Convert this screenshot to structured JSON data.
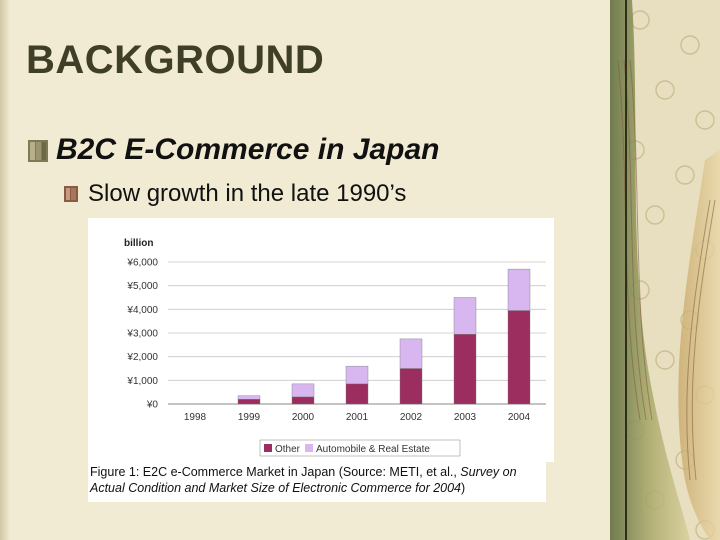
{
  "slide": {
    "title": "BACKGROUND",
    "bullet_1": "B2C E-Commerce in Japan",
    "bullet_2": "Slow growth in the late 1990’s"
  },
  "caption": {
    "prefix": "Figure 1: E2C e-Commerce Market in Japan (Source: METI, et al., ",
    "italic": "Survey on Actual Condition and Market Size of Electronic Commerce for 2004",
    "suffix": ")"
  },
  "colors": {
    "background": "#f1ebd3",
    "title": "#3f3f28",
    "series_other": "#9b2d5f",
    "series_auto": "#d8b7f0"
  },
  "chart_data": {
    "type": "bar",
    "stacked": true,
    "unit_label": "billion",
    "categories": [
      "1998",
      "1999",
      "2000",
      "2001",
      "2002",
      "2003",
      "2004"
    ],
    "series": [
      {
        "name": "Other",
        "values": [
          0,
          200,
          300,
          850,
          1500,
          2950,
          3950
        ]
      },
      {
        "name": "Automobile & Real Estate",
        "values": [
          0,
          150,
          550,
          750,
          1250,
          1550,
          1750
        ]
      }
    ],
    "ylim": [
      0,
      6000
    ],
    "yticks": [
      "¥0",
      "¥1,000",
      "¥2,000",
      "¥3,000",
      "¥4,000",
      "¥5,000",
      "¥6,000"
    ],
    "grid": true,
    "legend": "bottom"
  }
}
